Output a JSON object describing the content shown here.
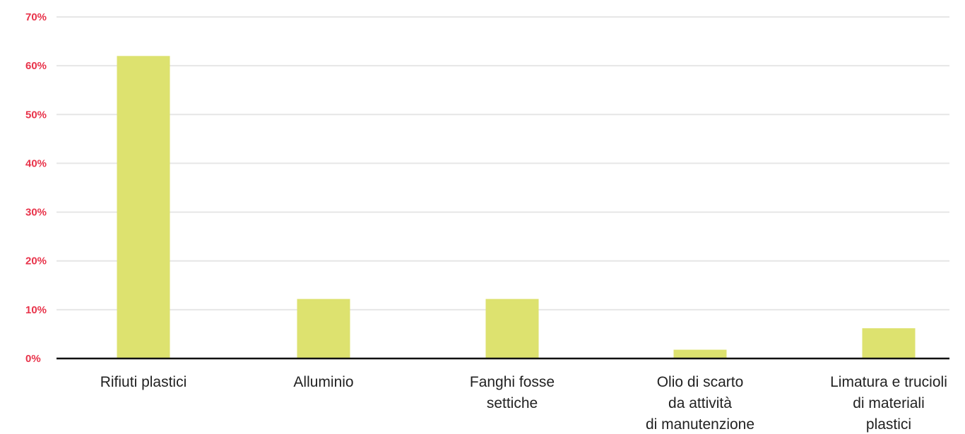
{
  "chart_data": {
    "type": "bar",
    "categories": [
      [
        "Rifiuti plastici"
      ],
      [
        "Alluminio"
      ],
      [
        "Fanghi fosse",
        "settiche"
      ],
      [
        "Olio di scarto",
        "da attività",
        "di manutenzione"
      ],
      [
        "Limatura e trucioli",
        "di materiali",
        "plastici"
      ]
    ],
    "values": [
      62,
      12.2,
      12.2,
      1.8,
      6.2
    ],
    "yticks": [
      "0%",
      "10%",
      "20%",
      "30%",
      "40%",
      "50%",
      "60%",
      "70%"
    ],
    "ylim": [
      0,
      70
    ],
    "grid": true
  },
  "colors": {
    "bar": "#dde26f",
    "grid": "#e6e6e6",
    "axis": "#111111",
    "tick_label": "#e8334a"
  }
}
